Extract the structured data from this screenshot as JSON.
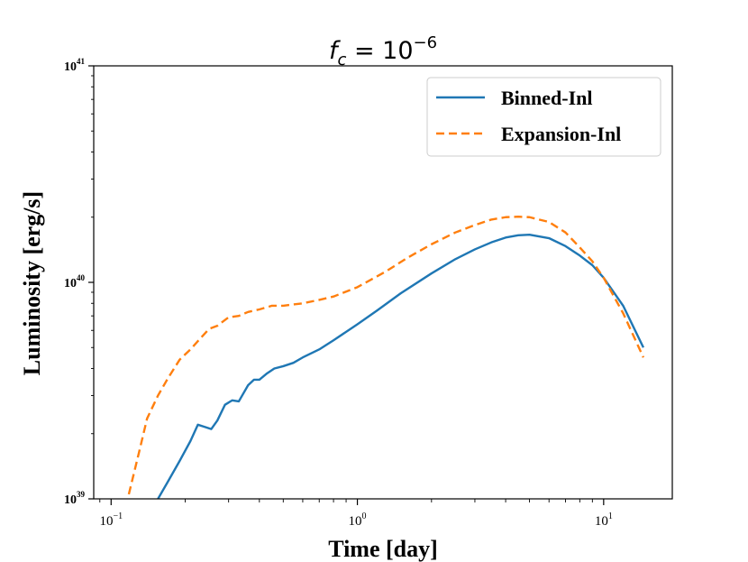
{
  "chart_data": {
    "type": "line",
    "title": "f_c = 10^{-6}",
    "title_parts": {
      "base": "f",
      "sub": "c",
      "mid": " = 10",
      "sup": "−6"
    },
    "xlabel": "Time [day]",
    "ylabel": "Luminosity [erg/s]",
    "xscale": "log",
    "yscale": "log",
    "xlim": [
      0.085,
      19
    ],
    "ylim": [
      1e+39,
      1e+41
    ],
    "grid": false,
    "legend_position": "top-right",
    "x_ticks": [
      {
        "value": 0.1,
        "base": "10",
        "exp": "−1"
      },
      {
        "value": 1,
        "base": "10",
        "exp": "0"
      },
      {
        "value": 10,
        "base": "10",
        "exp": "1"
      }
    ],
    "y_ticks": [
      {
        "value": 1e+39,
        "base": "10",
        "exp": "39"
      },
      {
        "value": 1e+40,
        "base": "10",
        "exp": "40"
      },
      {
        "value": 1e+41,
        "base": "10",
        "exp": "41"
      }
    ],
    "series": [
      {
        "name": "Binned-Inl",
        "color": "#1f77b4",
        "style": "solid",
        "x": [
          0.155,
          0.17,
          0.19,
          0.21,
          0.225,
          0.24,
          0.255,
          0.27,
          0.29,
          0.31,
          0.33,
          0.36,
          0.38,
          0.4,
          0.43,
          0.46,
          0.5,
          0.55,
          0.6,
          0.7,
          0.8,
          1.0,
          1.2,
          1.5,
          2.0,
          2.5,
          3.0,
          3.5,
          4.0,
          4.5,
          5.0,
          6.0,
          7.0,
          8.0,
          9.0,
          10.0,
          12.0,
          14.5
        ],
        "y": [
          1e+39,
          1.2e+39,
          1.5e+39,
          1.85e+39,
          2.2e+39,
          2.15e+39,
          2.1e+39,
          2.3e+39,
          2.72e+39,
          2.85e+39,
          2.82e+39,
          3.35e+39,
          3.55e+39,
          3.55e+39,
          3.8e+39,
          4e+39,
          4.1e+39,
          4.25e+39,
          4.5e+39,
          4.9e+39,
          5.4e+39,
          6.4e+39,
          7.4e+39,
          8.9e+39,
          1.1e+40,
          1.28e+40,
          1.42e+40,
          1.53e+40,
          1.61e+40,
          1.65e+40,
          1.66e+40,
          1.6e+40,
          1.47e+40,
          1.33e+40,
          1.2e+40,
          1.05e+40,
          7.8e+39,
          5e+39
        ]
      },
      {
        "name": "Expansion-Inl",
        "color": "#ff7f0e",
        "style": "dashed",
        "x": [
          0.118,
          0.13,
          0.14,
          0.155,
          0.17,
          0.19,
          0.21,
          0.23,
          0.25,
          0.27,
          0.3,
          0.33,
          0.36,
          0.4,
          0.45,
          0.5,
          0.6,
          0.7,
          0.8,
          1.0,
          1.3,
          1.6,
          2.0,
          2.5,
          3.0,
          3.5,
          4.0,
          4.5,
          5.0,
          6.0,
          7.0,
          8.0,
          9.0,
          10.0,
          12.0,
          14.5
        ],
        "y": [
          1.05e+39,
          1.65e+39,
          2.35e+39,
          3e+39,
          3.6e+39,
          4.4e+39,
          4.9e+39,
          5.5e+39,
          6.1e+39,
          6.3e+39,
          6.9e+39,
          7e+39,
          7.3e+39,
          7.5e+39,
          7.8e+39,
          7.8e+39,
          8e+39,
          8.3e+39,
          8.6e+39,
          9.5e+39,
          1.12e+40,
          1.3e+40,
          1.5e+40,
          1.7e+40,
          1.84e+40,
          1.95e+40,
          2e+40,
          2.01e+40,
          2e+40,
          1.9e+40,
          1.7e+40,
          1.45e+40,
          1.25e+40,
          1.05e+40,
          7.2e+39,
          4.5e+39
        ]
      }
    ]
  }
}
